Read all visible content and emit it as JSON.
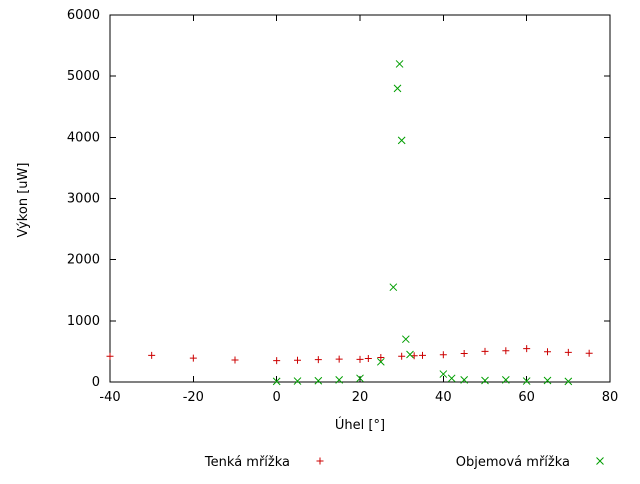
{
  "chart_data": {
    "type": "scatter",
    "title": "",
    "xlabel": "Úhel [°]",
    "ylabel": "Výkon [uW]",
    "xlim": [
      -40,
      80
    ],
    "ylim": [
      0,
      6000
    ],
    "xticks": [
      -40,
      -20,
      0,
      20,
      40,
      60,
      80
    ],
    "yticks": [
      0,
      1000,
      2000,
      3000,
      4000,
      5000,
      6000
    ],
    "grid": false,
    "legend_position": "bottom-outside",
    "series": [
      {
        "name": "Tenká mřížka",
        "marker": "plus",
        "color": "#cc0000",
        "points": [
          [
            -40,
            420
          ],
          [
            -30,
            435
          ],
          [
            -20,
            390
          ],
          [
            -10,
            360
          ],
          [
            0,
            350
          ],
          [
            5,
            355
          ],
          [
            10,
            365
          ],
          [
            15,
            375
          ],
          [
            20,
            370
          ],
          [
            22,
            385
          ],
          [
            25,
            400
          ],
          [
            30,
            420
          ],
          [
            33,
            430
          ],
          [
            35,
            435
          ],
          [
            40,
            445
          ],
          [
            45,
            465
          ],
          [
            50,
            500
          ],
          [
            55,
            510
          ],
          [
            60,
            545
          ],
          [
            65,
            495
          ],
          [
            70,
            485
          ],
          [
            75,
            470
          ]
        ]
      },
      {
        "name": "Objemová mřížka",
        "marker": "cross",
        "color": "#009e00",
        "points": [
          [
            0,
            10
          ],
          [
            5,
            15
          ],
          [
            10,
            20
          ],
          [
            15,
            35
          ],
          [
            20,
            60
          ],
          [
            25,
            330
          ],
          [
            28,
            1550
          ],
          [
            29,
            4800
          ],
          [
            29.5,
            5200
          ],
          [
            30,
            3950
          ],
          [
            31,
            700
          ],
          [
            32,
            450
          ],
          [
            40,
            130
          ],
          [
            42,
            60
          ],
          [
            45,
            35
          ],
          [
            50,
            25
          ],
          [
            55,
            35
          ],
          [
            60,
            15
          ],
          [
            65,
            25
          ],
          [
            70,
            10
          ]
        ]
      }
    ]
  }
}
